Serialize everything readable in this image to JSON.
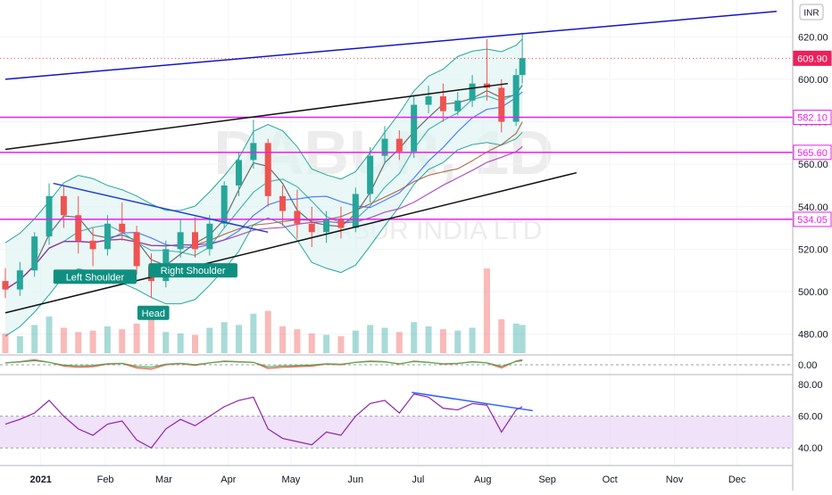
{
  "chart_data": {
    "type": "candlestick",
    "currency_badge": "INR",
    "watermark": [
      "DABUR, 1D",
      "DABUR INDIA LTD"
    ],
    "price_axis": {
      "ticks": [
        480,
        500,
        520,
        540,
        560,
        580,
        600,
        620
      ],
      "ylim": [
        471,
        634
      ]
    },
    "price_labels": [
      {
        "value": 609.9,
        "text": "609.90",
        "style": "filled"
      },
      {
        "value": 582.1,
        "text": "582.10",
        "style": "outline"
      },
      {
        "value": 565.6,
        "text": "565.60",
        "style": "outline"
      },
      {
        "value": 534.05,
        "text": "534.05",
        "style": "outline"
      }
    ],
    "horizontal_levels": [
      582.1,
      565.6,
      534.05
    ],
    "time_axis": {
      "labels": [
        "2021",
        "Feb",
        "Mar",
        "Apr",
        "May",
        "Jun",
        "Jul",
        "Aug",
        "Sep",
        "Oct",
        "Nov",
        "Dec"
      ],
      "dates": [
        "2021-01-01",
        "2021-02-01",
        "2021-03-01",
        "2021-04-01",
        "2021-05-01",
        "2021-06-01",
        "2021-07-01",
        "2021-08-01",
        "2021-09-01",
        "2021-10-01",
        "2021-11-01",
        "2021-12-01"
      ]
    },
    "annotations": [
      {
        "text": "Left Shoulder",
        "date": "2021-01-27",
        "price": 507
      },
      {
        "text": "Head",
        "date": "2021-02-24",
        "price": 490
      },
      {
        "text": "Right Shoulder",
        "date": "2021-03-15",
        "price": 510
      }
    ],
    "trendlines": [
      {
        "color": "#1414c8",
        "from": {
          "date": "2020-12-15",
          "price": 600
        },
        "to": {
          "date": "2021-12-20",
          "price": 632
        }
      },
      {
        "color": "#111111",
        "from": {
          "date": "2020-12-15",
          "price": 567
        },
        "to": {
          "date": "2021-08-13",
          "price": 598
        }
      },
      {
        "color": "#111111",
        "from": {
          "date": "2020-12-15",
          "price": 490
        },
        "to": {
          "date": "2021-09-15",
          "price": 556
        }
      },
      {
        "color": "#1f3fcf",
        "from": {
          "date": "2021-01-07",
          "price": 551
        },
        "to": {
          "date": "2021-04-20",
          "price": 528
        }
      }
    ],
    "candles": [
      {
        "date": "2020-12-15",
        "open": 505,
        "high": 511,
        "low": 497,
        "close": 501
      },
      {
        "date": "2020-12-22",
        "open": 501,
        "high": 514,
        "low": 498,
        "close": 510
      },
      {
        "date": "2020-12-29",
        "open": 510,
        "high": 528,
        "low": 507,
        "close": 526
      },
      {
        "date": "2021-01-05",
        "open": 526,
        "high": 551,
        "low": 522,
        "close": 545
      },
      {
        "date": "2021-01-12",
        "open": 545,
        "high": 550,
        "low": 530,
        "close": 536
      },
      {
        "date": "2021-01-19",
        "open": 536,
        "high": 545,
        "low": 518,
        "close": 524
      },
      {
        "date": "2021-01-26",
        "open": 524,
        "high": 530,
        "low": 512,
        "close": 520
      },
      {
        "date": "2021-02-02",
        "open": 520,
        "high": 536,
        "low": 517,
        "close": 532
      },
      {
        "date": "2021-02-09",
        "open": 532,
        "high": 542,
        "low": 524,
        "close": 528
      },
      {
        "date": "2021-02-16",
        "open": 528,
        "high": 531,
        "low": 508,
        "close": 512
      },
      {
        "date": "2021-02-23",
        "open": 512,
        "high": 518,
        "low": 497,
        "close": 505
      },
      {
        "date": "2021-03-02",
        "open": 505,
        "high": 524,
        "low": 502,
        "close": 520
      },
      {
        "date": "2021-03-09",
        "open": 520,
        "high": 534,
        "low": 516,
        "close": 528
      },
      {
        "date": "2021-03-16",
        "open": 528,
        "high": 535,
        "low": 516,
        "close": 520
      },
      {
        "date": "2021-03-23",
        "open": 520,
        "high": 536,
        "low": 517,
        "close": 532
      },
      {
        "date": "2021-03-30",
        "open": 532,
        "high": 552,
        "low": 530,
        "close": 550
      },
      {
        "date": "2021-04-06",
        "open": 550,
        "high": 566,
        "low": 545,
        "close": 562
      },
      {
        "date": "2021-04-13",
        "open": 562,
        "high": 581,
        "low": 558,
        "close": 570
      },
      {
        "date": "2021-04-20",
        "open": 570,
        "high": 572,
        "low": 540,
        "close": 545
      },
      {
        "date": "2021-04-27",
        "open": 545,
        "high": 550,
        "low": 531,
        "close": 538
      },
      {
        "date": "2021-05-04",
        "open": 538,
        "high": 548,
        "low": 525,
        "close": 532
      },
      {
        "date": "2021-05-11",
        "open": 532,
        "high": 540,
        "low": 521,
        "close": 528
      },
      {
        "date": "2021-05-18",
        "open": 528,
        "high": 538,
        "low": 523,
        "close": 534
      },
      {
        "date": "2021-05-25",
        "open": 534,
        "high": 540,
        "low": 525,
        "close": 530
      },
      {
        "date": "2021-06-01",
        "open": 530,
        "high": 549,
        "low": 528,
        "close": 546
      },
      {
        "date": "2021-06-08",
        "open": 546,
        "high": 568,
        "low": 542,
        "close": 564
      },
      {
        "date": "2021-06-15",
        "open": 564,
        "high": 578,
        "low": 560,
        "close": 572
      },
      {
        "date": "2021-06-22",
        "open": 572,
        "high": 576,
        "low": 562,
        "close": 566
      },
      {
        "date": "2021-06-29",
        "open": 566,
        "high": 592,
        "low": 563,
        "close": 588
      },
      {
        "date": "2021-07-06",
        "open": 588,
        "high": 597,
        "low": 584,
        "close": 592
      },
      {
        "date": "2021-07-13",
        "open": 592,
        "high": 598,
        "low": 580,
        "close": 585
      },
      {
        "date": "2021-07-20",
        "open": 585,
        "high": 594,
        "low": 583,
        "close": 590
      },
      {
        "date": "2021-07-27",
        "open": 590,
        "high": 602,
        "low": 587,
        "close": 598
      },
      {
        "date": "2021-08-03",
        "open": 598,
        "high": 619,
        "low": 590,
        "close": 596
      },
      {
        "date": "2021-08-10",
        "open": 596,
        "high": 600,
        "low": 575,
        "close": 580
      },
      {
        "date": "2021-08-17",
        "open": 580,
        "high": 605,
        "low": 578,
        "close": 602
      },
      {
        "date": "2021-08-20",
        "open": 602,
        "high": 622,
        "low": 598,
        "close": 610
      }
    ],
    "volume": [
      14,
      12,
      20,
      26,
      18,
      15,
      16,
      19,
      17,
      21,
      24,
      15,
      14,
      13,
      18,
      22,
      20,
      28,
      30,
      19,
      17,
      14,
      13,
      12,
      16,
      20,
      18,
      15,
      22,
      19,
      17,
      16,
      18,
      60,
      24,
      21,
      20
    ],
    "indicator_1": {
      "zero_label": "0.00",
      "values": [
        0.3,
        0.5,
        0.8,
        0.4,
        -0.2,
        -0.4,
        -0.3,
        0.1,
        0.2,
        -0.5,
        -0.7,
        0.0,
        0.2,
        -0.1,
        0.3,
        0.6,
        0.5,
        0.4,
        -0.6,
        -0.4,
        -0.3,
        -0.2,
        0.1,
        0.0,
        0.4,
        0.6,
        0.5,
        0.1,
        0.6,
        0.4,
        0.1,
        0.2,
        0.5,
        0.3,
        -0.5,
        0.6,
        0.8
      ]
    },
    "rsi": {
      "ticks": [
        40,
        60,
        80
      ],
      "tick_labels": [
        "40.00",
        "60.00",
        "80.00"
      ],
      "ylim": [
        30,
        84
      ],
      "band": [
        40,
        60
      ],
      "values": [
        55,
        58,
        62,
        70,
        60,
        52,
        48,
        55,
        57,
        45,
        40,
        52,
        58,
        54,
        60,
        66,
        70,
        72,
        52,
        46,
        44,
        42,
        50,
        48,
        60,
        68,
        70,
        62,
        74,
        72,
        65,
        64,
        68,
        67,
        50,
        64,
        66
      ],
      "divergence_line": {
        "from": {
          "date": "2021-06-28",
          "value": 75
        },
        "to": {
          "date": "2021-08-25",
          "value": 63.5
        }
      }
    }
  }
}
